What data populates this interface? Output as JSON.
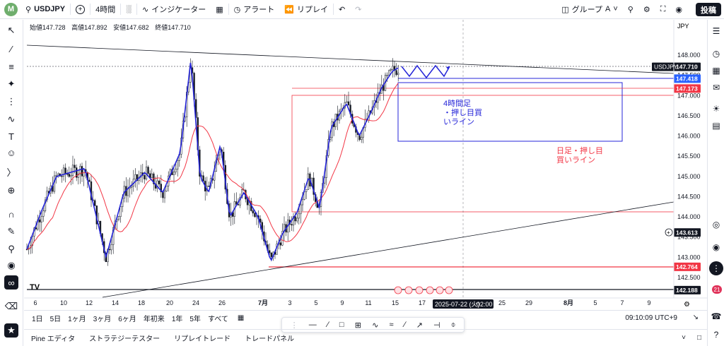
{
  "topbar": {
    "avatar_letter": "M",
    "symbol": "USDJPY",
    "interval": "4時間",
    "indicators": "インジケーター",
    "alert": "アラート",
    "replay": "リプレイ",
    "group": "グループ",
    "group_letter": "A",
    "publish": "投稿"
  },
  "ohlc": {
    "open": "始値147.728",
    "high": "高値147.892",
    "low": "安値147.682",
    "close": "終値147.710"
  },
  "chart_data": {
    "type": "candlestick",
    "currency": "JPY",
    "symbol_label": "USDJPY",
    "ylim": [
      142.188,
      148.3
    ],
    "y_ticks": [
      "148.000",
      "147.500",
      "147.000",
      "146.500",
      "146.000",
      "145.500",
      "145.000",
      "144.500",
      "144.000",
      "143.500",
      "143.000",
      "142.500"
    ],
    "x_ticks": [
      "6",
      "10",
      "12",
      "14",
      "18",
      "20",
      "24",
      "26",
      "7月",
      "3",
      "5",
      "9",
      "11",
      "15",
      "17",
      "25",
      "29",
      "8月",
      "5",
      "7",
      "9"
    ],
    "crosshair_date": "2025-07-22 (火)",
    "crosshair_time": "02:00",
    "price_labels": [
      {
        "text": "USDJPY",
        "value": "147.710",
        "bg": "#131722",
        "fg": "#ffffff"
      },
      {
        "text": "",
        "value": "147.418",
        "bg": "#2962ff",
        "fg": "#ffffff"
      },
      {
        "text": "",
        "value": "147.173",
        "bg": "#f23645",
        "fg": "#ffffff"
      },
      {
        "text": "",
        "value": "143.613",
        "bg": "#131722",
        "fg": "#ffffff"
      },
      {
        "text": "",
        "value": "142.764",
        "bg": "#f23645",
        "fg": "#ffffff"
      },
      {
        "text": "",
        "value": "142.188",
        "bg": "#131722",
        "fg": "#ffffff"
      }
    ],
    "annotations": [
      {
        "text": "4時間足\n・押し目買\nいライン",
        "color": "#2424d8"
      },
      {
        "text": "日足・押し目\n買いライン",
        "color": "#f23645"
      }
    ]
  },
  "bottom": {
    "ranges": [
      "1日",
      "5日",
      "1ヶ月",
      "3ヶ月",
      "6ヶ月",
      "年初来",
      "1年",
      "5年",
      "すべて"
    ],
    "clock": "09:10:09 UTC+9"
  },
  "panels": [
    "Pine エディタ",
    "ストラテジーテスター",
    "リプレイトレード",
    "トレードパネル"
  ],
  "badge": "21",
  "colors": {
    "up": "#131722",
    "down": "#131722",
    "ma": "#f23645",
    "wave": "#2424d8",
    "accent": "#2962ff"
  }
}
